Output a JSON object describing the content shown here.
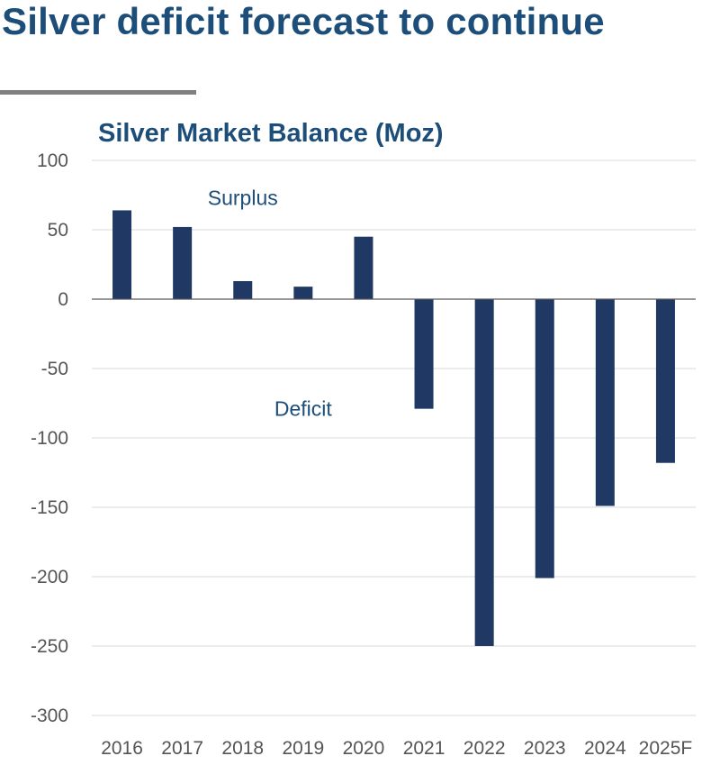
{
  "headline": "Silver deficit forecast to continue",
  "colors": {
    "headline": "#1d4e79",
    "bar": "#1f3864",
    "grid": "#d9d9d9",
    "rule": "#808080"
  },
  "chart_data": {
    "type": "bar",
    "title": "Silver Market Balance (Moz)",
    "categories": [
      "2016",
      "2017",
      "2018",
      "2019",
      "2020",
      "2021",
      "2022",
      "2023",
      "2024",
      "2025F"
    ],
    "values": [
      64,
      52,
      13,
      9,
      45,
      -79,
      -250,
      -201,
      -149,
      -118
    ],
    "ylim": [
      -300,
      100
    ],
    "yticks": [
      100,
      50,
      0,
      -50,
      -100,
      -150,
      -200,
      -250,
      -300
    ],
    "grid": true,
    "annotations": [
      {
        "text": "Surplus",
        "category": "2018",
        "value": 68
      },
      {
        "text": "Deficit",
        "category": "2019",
        "value": -84
      }
    ]
  }
}
